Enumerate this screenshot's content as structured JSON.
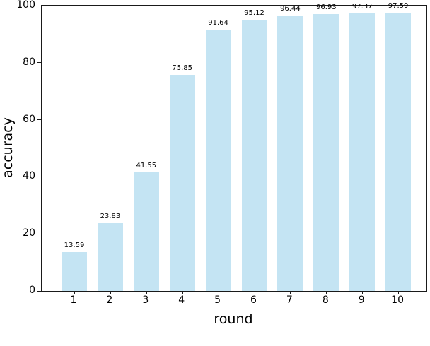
{
  "chart_data": {
    "type": "bar",
    "title": "",
    "xlabel": "round",
    "ylabel": "accuracy",
    "categories": [
      "1",
      "2",
      "3",
      "4",
      "5",
      "6",
      "7",
      "8",
      "9",
      "10"
    ],
    "values": [
      13.59,
      23.83,
      41.55,
      75.85,
      91.64,
      95.12,
      96.44,
      96.93,
      97.37,
      97.59
    ],
    "value_labels": [
      "13.59",
      "23.83",
      "41.55",
      "75.85",
      "91.64",
      "95.12",
      "96.44",
      "96.93",
      "97.37",
      "97.59"
    ],
    "ylim": [
      0,
      100
    ],
    "yticks": [
      "0",
      "20",
      "40",
      "60",
      "80",
      "100"
    ],
    "ytick_values": [
      0,
      20,
      40,
      60,
      80,
      100
    ],
    "grid": false,
    "legend": "none",
    "bar_color": "#c4e4f3",
    "spine_color": "#1a1a1a",
    "text_color": "#000000"
  }
}
